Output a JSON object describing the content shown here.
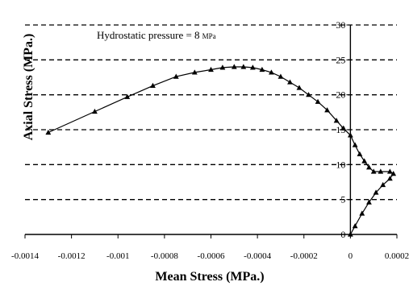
{
  "chart_data": {
    "type": "line",
    "title": "",
    "annotation": "Hydrostatic pressure = 8",
    "annotation_unit": "MPa",
    "xlabel": "Mean Stress (MPa.)",
    "ylabel": "Axial Stress (MPa.)",
    "xlim": [
      -0.0014,
      0.0002
    ],
    "ylim": [
      0,
      30
    ],
    "x_ticks": [
      -0.0014,
      -0.0012,
      -0.001,
      -0.0008,
      -0.0006,
      -0.0004,
      -0.0002,
      0,
      0.0002
    ],
    "x_tick_labels": [
      "-0.0014",
      "-0.0012",
      "-0.001",
      "-0.0008",
      "-0.0006",
      "-0.0004",
      "-0.0002",
      "0",
      "0.0002"
    ],
    "y_ticks": [
      0,
      5,
      10,
      15,
      20,
      25,
      30
    ],
    "y_tick_labels": [
      "0",
      "5",
      "10",
      "15",
      "20",
      "25",
      "30"
    ],
    "grid": "horizontal-dashed",
    "series": [
      {
        "marker": "triangle",
        "color": "#000000",
        "points": [
          [
            0,
            0
          ],
          [
            2e-05,
            1.2
          ],
          [
            5e-05,
            3.0
          ],
          [
            8e-05,
            4.6
          ],
          [
            0.00011,
            6.0
          ],
          [
            0.00014,
            7.1
          ],
          [
            0.00017,
            8.0
          ],
          [
            0.000185,
            8.7
          ],
          [
            0.00017,
            9.0
          ],
          [
            0.00013,
            9.0
          ],
          [
            0.0001,
            9.0
          ],
          [
            8e-05,
            9.6
          ],
          [
            6e-05,
            10.5
          ],
          [
            4e-05,
            11.5
          ],
          [
            2e-05,
            12.8
          ],
          [
            0,
            14.2
          ],
          [
            -3e-05,
            15.2
          ],
          [
            -6e-05,
            16.3
          ],
          [
            -0.0001,
            17.8
          ],
          [
            -0.00014,
            19.0
          ],
          [
            -0.00018,
            20.0
          ],
          [
            -0.00022,
            21.0
          ],
          [
            -0.00026,
            21.8
          ],
          [
            -0.0003,
            22.6
          ],
          [
            -0.00034,
            23.2
          ],
          [
            -0.00038,
            23.6
          ],
          [
            -0.00042,
            23.9
          ],
          [
            -0.00046,
            24.0
          ],
          [
            -0.0005,
            24.0
          ],
          [
            -0.00055,
            23.9
          ],
          [
            -0.0006,
            23.6
          ],
          [
            -0.00067,
            23.2
          ],
          [
            -0.00075,
            22.6
          ],
          [
            -0.00085,
            21.3
          ],
          [
            -0.00096,
            19.7
          ],
          [
            -0.0011,
            17.6
          ],
          [
            -0.0013,
            14.6
          ]
        ]
      }
    ]
  }
}
